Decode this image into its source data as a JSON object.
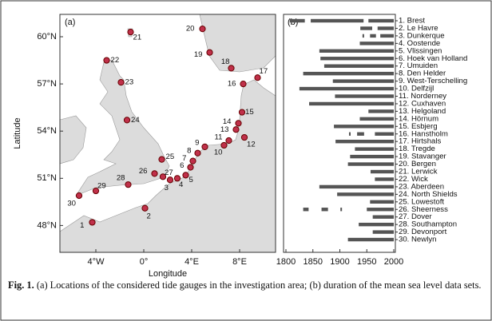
{
  "figure": {
    "map": {
      "panel_label": "(a)",
      "x_label": "Longitude",
      "y_label": "Latitude",
      "lon_ticks": [
        {
          "value": -4,
          "label": "4°W"
        },
        {
          "value": 0,
          "label": "0°"
        },
        {
          "value": 4,
          "label": "4°E"
        },
        {
          "value": 8,
          "label": "8°E"
        }
      ],
      "lat_ticks": [
        {
          "value": 60,
          "label": "60°N"
        },
        {
          "value": 57,
          "label": "57°N"
        },
        {
          "value": 54,
          "label": "54°N"
        },
        {
          "value": 51,
          "label": "51°N"
        },
        {
          "value": 48,
          "label": "48°N"
        }
      ],
      "points": [
        {
          "label": "1",
          "lon": -4.3,
          "lat": 48.2
        },
        {
          "label": "2",
          "lon": 0.1,
          "lat": 49.1
        },
        {
          "label": "3",
          "lon": 2.2,
          "lat": 50.9
        },
        {
          "label": "4",
          "lon": 2.8,
          "lat": 51.0
        },
        {
          "label": "5",
          "lon": 3.5,
          "lat": 51.2
        },
        {
          "label": "6",
          "lon": 3.9,
          "lat": 51.7
        },
        {
          "label": "7",
          "lon": 4.1,
          "lat": 52.1
        },
        {
          "label": "8",
          "lon": 4.5,
          "lat": 52.6
        },
        {
          "label": "9",
          "lon": 5.1,
          "lat": 53.0
        },
        {
          "label": "10",
          "lon": 6.7,
          "lat": 53.1
        },
        {
          "label": "11",
          "lon": 7.1,
          "lat": 53.4
        },
        {
          "label": "12",
          "lon": 8.4,
          "lat": 53.6
        },
        {
          "label": "13",
          "lon": 7.7,
          "lat": 54.1
        },
        {
          "label": "14",
          "lon": 7.9,
          "lat": 54.5
        },
        {
          "label": "15",
          "lon": 8.2,
          "lat": 55.2
        },
        {
          "label": "16",
          "lon": 8.3,
          "lat": 57.0
        },
        {
          "label": "17",
          "lon": 9.5,
          "lat": 57.4
        },
        {
          "label": "18",
          "lon": 7.3,
          "lat": 58.0
        },
        {
          "label": "19",
          "lon": 5.5,
          "lat": 59.0
        },
        {
          "label": "20",
          "lon": 4.9,
          "lat": 60.5
        },
        {
          "label": "21",
          "lon": -1.1,
          "lat": 60.3
        },
        {
          "label": "22",
          "lon": -3.1,
          "lat": 58.5
        },
        {
          "label": "23",
          "lon": -1.9,
          "lat": 57.1
        },
        {
          "label": "24",
          "lon": -1.4,
          "lat": 54.7
        },
        {
          "label": "25",
          "lon": 1.5,
          "lat": 52.2
        },
        {
          "label": "26",
          "lon": 0.9,
          "lat": 51.3
        },
        {
          "label": "27",
          "lon": 1.6,
          "lat": 51.1
        },
        {
          "label": "28",
          "lon": -1.3,
          "lat": 50.6
        },
        {
          "label": "29",
          "lon": -4.0,
          "lat": 50.2
        },
        {
          "label": "30",
          "lon": -5.4,
          "lat": 49.9
        }
      ]
    },
    "durations": {
      "panel_label": "(b)",
      "color": "#555555",
      "xlim": [
        1800,
        2000
      ],
      "xticks": [
        1800,
        1850,
        1900,
        1950,
        2000
      ],
      "stations": [
        {
          "name": "1. Brest",
          "periods": [
            [
              1807,
              1835
            ],
            [
              1846,
              1944
            ],
            [
              1953,
              2000
            ]
          ]
        },
        {
          "name": "2. Le Havre",
          "periods": [
            [
              1938,
              1960
            ],
            [
              1970,
              2000
            ]
          ]
        },
        {
          "name": "3. Dunkerque",
          "periods": [
            [
              1942,
              1945
            ],
            [
              1956,
              1967
            ],
            [
              1975,
              2000
            ]
          ]
        },
        {
          "name": "4. Oostende",
          "periods": [
            [
              1937,
              2000
            ]
          ]
        },
        {
          "name": "5. Vlissingen",
          "periods": [
            [
              1862,
              2000
            ]
          ]
        },
        {
          "name": "6. Hoek van Holland",
          "periods": [
            [
              1864,
              2000
            ]
          ]
        },
        {
          "name": "7. Umuiden",
          "periods": [
            [
              1871,
              2000
            ]
          ]
        },
        {
          "name": "8. Den Helder",
          "periods": [
            [
              1832,
              2000
            ]
          ]
        },
        {
          "name": "9. West-Terschelling",
          "periods": [
            [
              1887,
              2000
            ]
          ]
        },
        {
          "name": "10. Delfzijl",
          "periods": [
            [
              1825,
              2000
            ]
          ]
        },
        {
          "name": "11. Norderney",
          "periods": [
            [
              1891,
              2000
            ]
          ]
        },
        {
          "name": "12. Cuxhaven",
          "periods": [
            [
              1843,
              2000
            ]
          ]
        },
        {
          "name": "13. Helgoland",
          "periods": [
            [
              1953,
              2000
            ]
          ]
        },
        {
          "name": "14. Hörnum",
          "periods": [
            [
              1937,
              2000
            ]
          ]
        },
        {
          "name": "15. Esbjerg",
          "periods": [
            [
              1889,
              2000
            ]
          ]
        },
        {
          "name": "16. Hanstholm",
          "periods": [
            [
              1917,
              1920
            ],
            [
              1932,
              1945
            ],
            [
              1965,
              2000
            ]
          ]
        },
        {
          "name": "17. Hirtshals",
          "periods": [
            [
              1892,
              2000
            ]
          ]
        },
        {
          "name": "18. Tregde",
          "periods": [
            [
              1928,
              2000
            ]
          ]
        },
        {
          "name": "19. Stavanger",
          "periods": [
            [
              1919,
              2000
            ]
          ]
        },
        {
          "name": "20. Bergen",
          "periods": [
            [
              1915,
              2000
            ]
          ]
        },
        {
          "name": "21. Lerwick",
          "periods": [
            [
              1957,
              2000
            ]
          ]
        },
        {
          "name": "22. Wick",
          "periods": [
            [
              1965,
              2000
            ]
          ]
        },
        {
          "name": "23. Aberdeen",
          "periods": [
            [
              1862,
              2000
            ]
          ]
        },
        {
          "name": "24. North Shields",
          "periods": [
            [
              1895,
              2000
            ]
          ]
        },
        {
          "name": "25. Lowestoft",
          "periods": [
            [
              1956,
              2000
            ]
          ]
        },
        {
          "name": "26. Sheerness",
          "periods": [
            [
              1832,
              1842
            ],
            [
              1866,
              1878
            ],
            [
              1901,
              1904
            ],
            [
              1950,
              2000
            ]
          ]
        },
        {
          "name": "27. Dover",
          "periods": [
            [
              1961,
              2000
            ]
          ]
        },
        {
          "name": "28. Southampton",
          "periods": [
            [
              1935,
              2000
            ]
          ]
        },
        {
          "name": "29. Devonport",
          "periods": [
            [
              1961,
              2000
            ]
          ]
        },
        {
          "name": "30. Newlyn",
          "periods": [
            [
              1915,
              2000
            ]
          ]
        }
      ]
    },
    "caption": {
      "label": "Fig. 1.",
      "text": "(a) Locations of the considered tide gauges in the investigation area; (b) duration of the mean sea level data sets."
    }
  }
}
